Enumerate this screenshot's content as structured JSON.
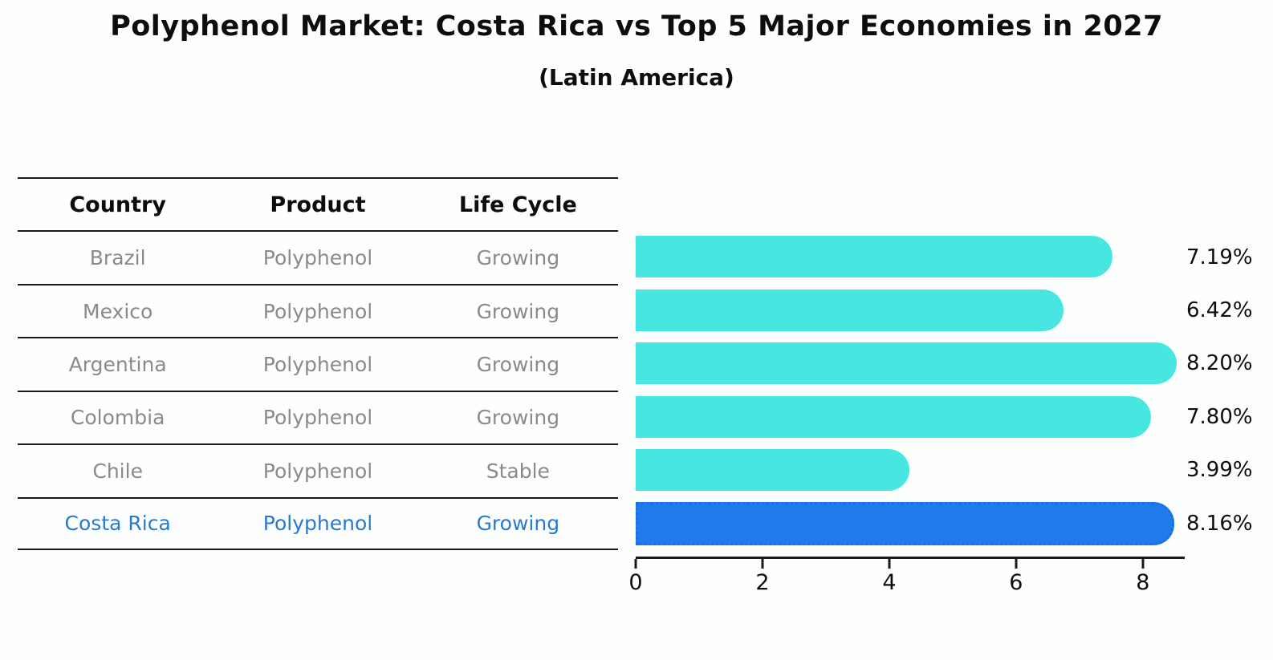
{
  "title": "Polyphenol Market: Costa Rica vs Top 5 Major Economies in 2027",
  "subtitle": "(Latin America)",
  "table": {
    "headers": [
      "Country",
      "Product",
      "Life Cycle"
    ],
    "rows": [
      {
        "country": "Brazil",
        "product": "Polyphenol",
        "life_cycle": "Growing"
      },
      {
        "country": "Mexico",
        "product": "Polyphenol",
        "life_cycle": "Growing"
      },
      {
        "country": "Argentina",
        "product": "Polyphenol",
        "life_cycle": "Growing"
      },
      {
        "country": "Colombia",
        "product": "Polyphenol",
        "life_cycle": "Growing"
      },
      {
        "country": "Chile",
        "product": "Polyphenol",
        "life_cycle": "Stable"
      },
      {
        "country": "Costa Rica",
        "product": "Polyphenol",
        "life_cycle": "Growing"
      }
    ],
    "highlighted_row": "Costa Rica"
  },
  "chart_data": {
    "type": "bar",
    "orientation": "horizontal",
    "title": "Polyphenol Market: Costa Rica vs Top 5 Major Economies in 2027 (Latin America)",
    "categories": [
      "Brazil",
      "Mexico",
      "Argentina",
      "Colombia",
      "Chile",
      "Costa Rica"
    ],
    "values": [
      7.19,
      6.42,
      8.2,
      7.8,
      3.99,
      8.16
    ],
    "value_labels": [
      "7.19%",
      "6.42%",
      "8.20%",
      "7.80%",
      "3.99%",
      "8.16%"
    ],
    "x_ticks": [
      0,
      2,
      4,
      6,
      8
    ],
    "xlim": [
      0,
      8.66
    ],
    "grid": false,
    "legend": false,
    "highlight_index": 5,
    "bar_color": "#47e6e1",
    "highlight_color": "#1f7be9",
    "highlight_edge_color": "#1a6fdc",
    "highlight_text_color": "#2779d2",
    "text_color": "#8a8a8a",
    "axis_color": "#1a1a1a"
  }
}
